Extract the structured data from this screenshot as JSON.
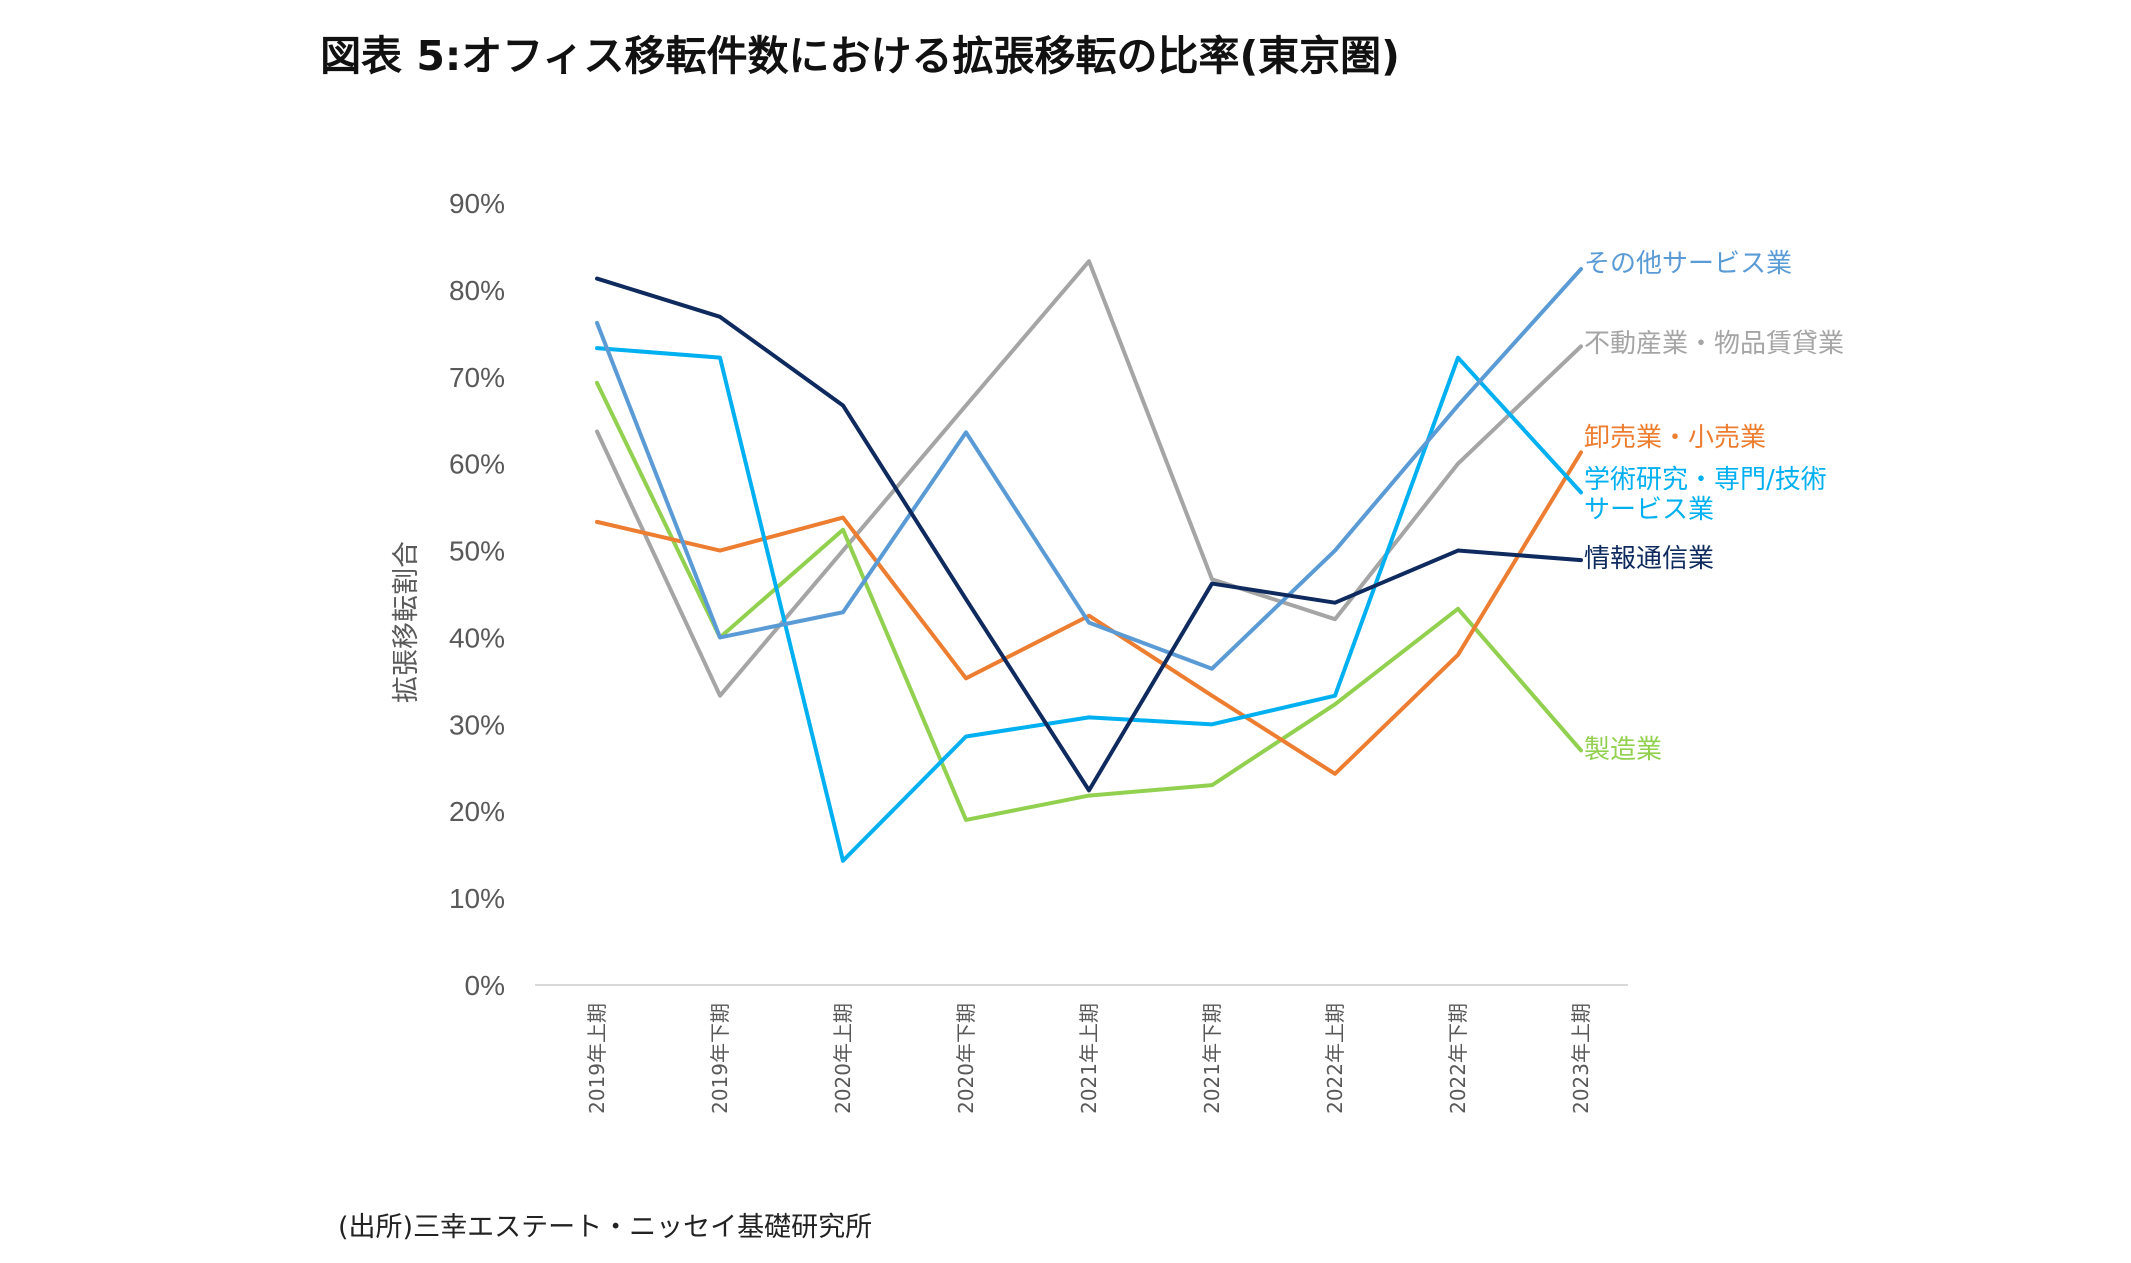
{
  "title": "図表 5:オフィス移転件数における拡張移転の比率(東京圏)",
  "source": "(出所)三幸エステート・ニッセイ基礎研究所",
  "chart_data": {
    "type": "line",
    "ylabel": "拡張移転割合",
    "xlabel": "",
    "ylim": [
      0,
      90
    ],
    "yticks": [
      "0%",
      "10%",
      "20%",
      "30%",
      "40%",
      "50%",
      "60%",
      "70%",
      "80%",
      "90%"
    ],
    "categories": [
      "2019年上期",
      "2019年下期",
      "2020年上期",
      "2020年下期",
      "2021年上期",
      "2021年下期",
      "2022年上期",
      "2022年下期",
      "2023年上期"
    ],
    "grid": false,
    "legend": "direct labels at line ends",
    "series": [
      {
        "name": "不動産業・物品賃貸業",
        "color": "#A5A5A5",
        "label_lines": [
          "不動産業・物品賃貸業"
        ],
        "values": [
          63.7,
          33.3,
          50.0,
          66.7,
          83.3,
          46.7,
          42.1,
          60.0,
          73.5
        ]
      },
      {
        "name": "製造業",
        "color": "#92D050",
        "label_lines": [
          "製造業"
        ],
        "values": [
          69.3,
          40.0,
          52.4,
          19.0,
          21.8,
          23.0,
          32.3,
          43.3,
          27.0
        ]
      },
      {
        "name": "卸売業・小売業",
        "color": "#ED7D31",
        "label_lines": [
          "卸売業・小売業"
        ],
        "values": [
          53.3,
          50.0,
          53.8,
          35.3,
          42.5,
          33.3,
          24.3,
          38.0,
          61.3
        ]
      },
      {
        "name": "学術研究・専門/技術サービス業",
        "color": "#00B0F0",
        "label_lines": [
          "学術研究・専門/技術",
          "サービス業"
        ],
        "values": [
          73.3,
          72.2,
          14.3,
          28.6,
          30.8,
          30.0,
          33.3,
          72.2,
          56.7
        ]
      },
      {
        "name": "その他サービス業",
        "color": "#5B9BD5",
        "label_lines": [
          "その他サービス業"
        ],
        "values": [
          76.2,
          40.0,
          42.9,
          63.6,
          41.7,
          36.4,
          50.0,
          66.7,
          82.4
        ]
      },
      {
        "name": "情報通信業",
        "color": "#0E2A5E",
        "label_lines": [
          "情報通信業"
        ],
        "values": [
          81.3,
          76.9,
          66.7,
          44.4,
          22.4,
          46.2,
          44.0,
          50.0,
          48.9
        ]
      }
    ]
  }
}
